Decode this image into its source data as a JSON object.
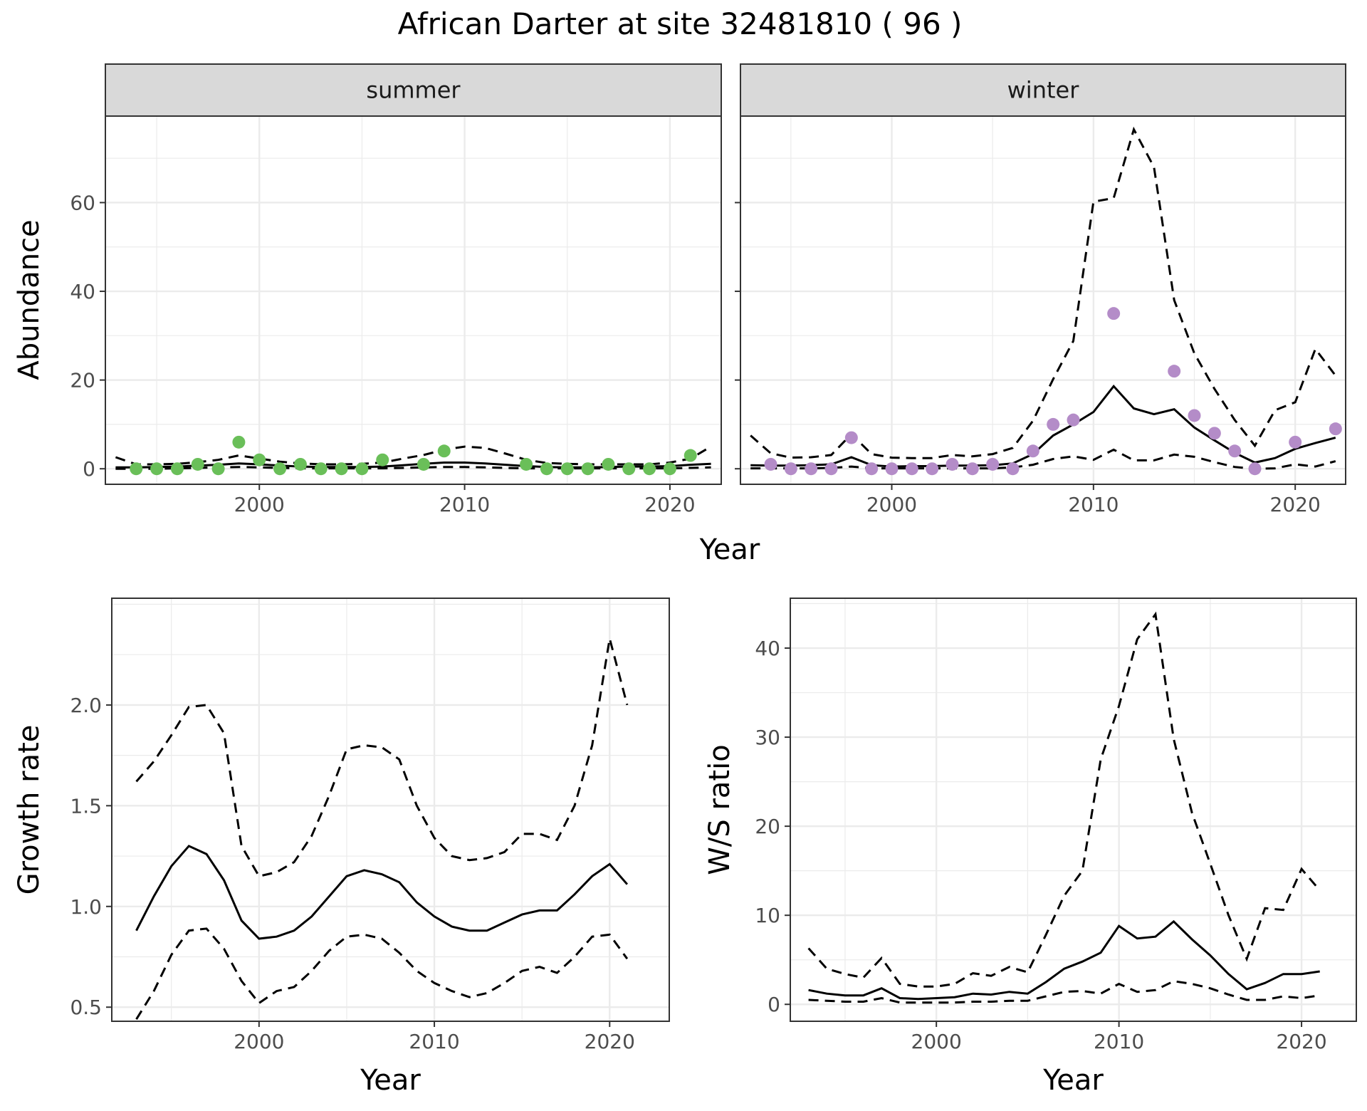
{
  "page_title": "African Darter at site 32481810 ( 96 )",
  "chart_data": [
    {
      "type": "line",
      "facet": "summer",
      "facet_label": "summer",
      "xlabel": "",
      "ylabel": "Abundance",
      "xlim": [
        1992.5,
        2022.5
      ],
      "ylim": [
        -3.5,
        79.5
      ],
      "xticks": [
        2000,
        2010,
        2020
      ],
      "yticks": [
        0,
        20,
        40,
        60
      ],
      "grid": true,
      "point_color": "#6abf59",
      "fit": {
        "x": [
          1993,
          1994,
          1995,
          1996,
          1997,
          1998,
          1999,
          2000,
          2001,
          2002,
          2003,
          2004,
          2005,
          2006,
          2007,
          2008,
          2009,
          2010,
          2011,
          2012,
          2013,
          2014,
          2015,
          2016,
          2017,
          2018,
          2019,
          2020,
          2021,
          2022
        ],
        "y": [
          0.3,
          0.3,
          0.4,
          0.5,
          0.7,
          0.9,
          1.2,
          1.0,
          0.7,
          0.5,
          0.4,
          0.4,
          0.4,
          0.5,
          0.8,
          1.1,
          1.4,
          1.4,
          1.2,
          0.9,
          0.6,
          0.4,
          0.3,
          0.3,
          0.4,
          0.5,
          0.5,
          0.6,
          0.9,
          1.1
        ]
      },
      "upper": {
        "x": [
          1993,
          1994,
          1995,
          1996,
          1997,
          1998,
          1999,
          2000,
          2001,
          2002,
          2003,
          2004,
          2005,
          2006,
          2007,
          2008,
          2009,
          2010,
          2011,
          2012,
          2013,
          2014,
          2015,
          2016,
          2017,
          2018,
          2019,
          2020,
          2021,
          2022
        ],
        "y": [
          2.6,
          1.0,
          1.0,
          1.1,
          1.5,
          2.0,
          3.0,
          2.3,
          1.6,
          1.2,
          1.0,
          1.0,
          1.1,
          1.4,
          2.3,
          3.1,
          4.3,
          5.0,
          4.7,
          3.4,
          2.0,
          1.3,
          1.1,
          1.0,
          1.0,
          1.0,
          1.0,
          1.4,
          2.3,
          5.0
        ]
      },
      "lower": {
        "x": [
          1993,
          1994,
          1995,
          1996,
          1997,
          1998,
          1999,
          2000,
          2001,
          2002,
          2003,
          2004,
          2005,
          2006,
          2007,
          2008,
          2009,
          2010,
          2011,
          2012,
          2013,
          2014,
          2015,
          2016,
          2017,
          2018,
          2019,
          2020,
          2021,
          2022
        ],
        "y": [
          0.0,
          0.0,
          0.0,
          0.1,
          0.2,
          0.3,
          0.4,
          0.3,
          0.2,
          0.1,
          0.1,
          0.1,
          0.1,
          0.1,
          0.2,
          0.3,
          0.4,
          0.4,
          0.3,
          0.2,
          0.1,
          0.1,
          0.1,
          0.1,
          0.1,
          0.1,
          0.1,
          0.1,
          0.2,
          0.3
        ]
      },
      "points": {
        "x": [
          1994,
          1995,
          1996,
          1997,
          1998,
          1999,
          2000,
          2001,
          2002,
          2003,
          2004,
          2005,
          2006,
          2008,
          2009,
          2013,
          2014,
          2015,
          2016,
          2017,
          2018,
          2019,
          2020,
          2021
        ],
        "y": [
          0,
          0,
          0,
          1,
          0,
          6,
          2,
          0,
          1,
          0,
          0,
          0,
          2,
          1,
          4,
          1,
          0,
          0,
          0,
          1,
          0,
          0,
          0,
          3
        ]
      }
    },
    {
      "type": "line",
      "facet": "winter",
      "facet_label": "winter",
      "xlabel": "",
      "ylabel": "",
      "xlim": [
        1992.5,
        2022.5
      ],
      "ylim": [
        -3.5,
        79.5
      ],
      "xticks": [
        2000,
        2010,
        2020
      ],
      "yticks": [
        0,
        20,
        40,
        60
      ],
      "grid": true,
      "point_color": "#b48cc8",
      "fit": {
        "x": [
          1993,
          1994,
          1995,
          1996,
          1997,
          1998,
          1999,
          2000,
          2001,
          2002,
          2003,
          2004,
          2005,
          2006,
          2007,
          2008,
          2009,
          2010,
          2011,
          2012,
          2013,
          2014,
          2015,
          2016,
          2017,
          2018,
          2019,
          2020,
          2021,
          2022
        ],
        "y": [
          0.8,
          0.7,
          0.7,
          0.8,
          1.0,
          2.6,
          0.8,
          0.5,
          0.6,
          0.6,
          0.7,
          0.7,
          0.8,
          1.2,
          3.3,
          7.5,
          10.0,
          12.8,
          18.6,
          13.6,
          12.3,
          13.4,
          9.3,
          6.4,
          3.6,
          1.4,
          2.4,
          4.5,
          5.8,
          7.0
        ]
      },
      "upper": {
        "x": [
          1993,
          1994,
          1995,
          1996,
          1997,
          1998,
          1999,
          2000,
          2001,
          2002,
          2003,
          2004,
          2005,
          2006,
          2007,
          2008,
          2009,
          2010,
          2011,
          2012,
          2013,
          2014,
          2015,
          2016,
          2017,
          2018,
          2019,
          2020,
          2021,
          2022
        ],
        "y": [
          7.5,
          3.5,
          2.5,
          2.6,
          3.1,
          7.8,
          3.3,
          2.5,
          2.4,
          2.4,
          3.1,
          2.8,
          3.3,
          4.7,
          10.8,
          20.2,
          28.8,
          60.2,
          61.0,
          76.5,
          68.0,
          38.0,
          26.0,
          18.0,
          11.0,
          5.2,
          13.2,
          15.0,
          27.0,
          21.0
        ]
      },
      "lower": {
        "x": [
          1993,
          1994,
          1995,
          1996,
          1997,
          1998,
          1999,
          2000,
          2001,
          2002,
          2003,
          2004,
          2005,
          2006,
          2007,
          2008,
          2009,
          2010,
          2011,
          2012,
          2013,
          2014,
          2015,
          2016,
          2017,
          2018,
          2019,
          2020,
          2021,
          2022
        ],
        "y": [
          0.1,
          0.1,
          0.1,
          0.1,
          0.2,
          0.5,
          0.1,
          0.1,
          0.1,
          0.1,
          0.1,
          0.1,
          0.1,
          0.3,
          0.9,
          2.2,
          2.8,
          2.0,
          4.3,
          1.9,
          1.9,
          3.2,
          2.7,
          1.5,
          0.4,
          0.0,
          0.1,
          1.0,
          0.5,
          1.7
        ]
      },
      "points": {
        "x": [
          1994,
          1995,
          1996,
          1997,
          1998,
          1999,
          2000,
          2001,
          2002,
          2003,
          2004,
          2005,
          2006,
          2007,
          2008,
          2009,
          2011,
          2014,
          2015,
          2016,
          2017,
          2018,
          2020,
          2022
        ],
        "y": [
          1,
          0,
          0,
          0,
          7,
          0,
          0,
          0,
          0,
          1,
          0,
          1,
          0,
          4,
          10,
          11,
          35,
          22,
          12,
          8,
          4,
          0,
          6,
          9
        ]
      }
    },
    {
      "type": "line",
      "xlabel": "Year",
      "ylabel": "Growth rate",
      "xlim": [
        1991.6,
        2023.4
      ],
      "ylim": [
        0.43,
        2.53
      ],
      "xticks": [
        2000,
        2010,
        2020
      ],
      "yticks": [
        0.5,
        1.0,
        1.5,
        2.0
      ],
      "ytick_labels": [
        "0.5",
        "1.0",
        "1.5",
        "2.0"
      ],
      "grid": true,
      "fit": {
        "x": [
          1993,
          1994,
          1995,
          1996,
          1997,
          1998,
          1999,
          2000,
          2001,
          2002,
          2003,
          2004,
          2005,
          2006,
          2007,
          2008,
          2009,
          2010,
          2011,
          2012,
          2013,
          2014,
          2015,
          2016,
          2017,
          2018,
          2019,
          2020,
          2021
        ],
        "y": [
          0.88,
          1.05,
          1.2,
          1.3,
          1.26,
          1.13,
          0.93,
          0.84,
          0.85,
          0.88,
          0.95,
          1.05,
          1.15,
          1.18,
          1.16,
          1.12,
          1.02,
          0.95,
          0.9,
          0.88,
          0.88,
          0.92,
          0.96,
          0.98,
          0.98,
          1.06,
          1.15,
          1.21,
          1.11
        ]
      },
      "upper": {
        "x": [
          1993,
          1994,
          1995,
          1996,
          1997,
          1998,
          1999,
          2000,
          2001,
          2002,
          2003,
          2004,
          2005,
          2006,
          2007,
          2008,
          2009,
          2010,
          2011,
          2012,
          2013,
          2014,
          2015,
          2016,
          2017,
          2018,
          2019,
          2020,
          2021
        ],
        "y": [
          1.62,
          1.72,
          1.85,
          1.99,
          2.0,
          1.86,
          1.3,
          1.15,
          1.17,
          1.22,
          1.35,
          1.55,
          1.78,
          1.8,
          1.79,
          1.73,
          1.5,
          1.34,
          1.25,
          1.23,
          1.24,
          1.27,
          1.36,
          1.36,
          1.33,
          1.5,
          1.8,
          2.33,
          2.0
        ]
      },
      "lower": {
        "x": [
          1993,
          1994,
          1995,
          1996,
          1997,
          1998,
          1999,
          2000,
          2001,
          2002,
          2003,
          2004,
          2005,
          2006,
          2007,
          2008,
          2009,
          2010,
          2011,
          2012,
          2013,
          2014,
          2015,
          2016,
          2017,
          2018,
          2019,
          2020,
          2021
        ],
        "y": [
          0.44,
          0.58,
          0.76,
          0.88,
          0.89,
          0.79,
          0.63,
          0.52,
          0.58,
          0.6,
          0.68,
          0.78,
          0.85,
          0.86,
          0.84,
          0.77,
          0.68,
          0.62,
          0.58,
          0.55,
          0.57,
          0.62,
          0.68,
          0.7,
          0.67,
          0.75,
          0.85,
          0.86,
          0.74
        ]
      }
    },
    {
      "type": "line",
      "xlabel": "Year",
      "ylabel": "W/S ratio",
      "xlim": [
        1992.0,
        2023.0
      ],
      "ylim": [
        -1.9,
        45.6
      ],
      "xticks": [
        2000,
        2010,
        2020
      ],
      "yticks": [
        0,
        10,
        20,
        30,
        40
      ],
      "grid": true,
      "fit": {
        "x": [
          1993,
          1994,
          1995,
          1996,
          1997,
          1998,
          1999,
          2000,
          2001,
          2002,
          2003,
          2004,
          2005,
          2006,
          2007,
          2008,
          2009,
          2010,
          2011,
          2012,
          2013,
          2014,
          2015,
          2016,
          2017,
          2018,
          2019,
          2020,
          2021
        ],
        "y": [
          1.6,
          1.2,
          1.0,
          1.0,
          1.8,
          0.7,
          0.6,
          0.7,
          0.8,
          1.2,
          1.1,
          1.4,
          1.2,
          2.5,
          4.0,
          4.8,
          5.8,
          8.8,
          7.4,
          7.6,
          9.3,
          7.3,
          5.5,
          3.4,
          1.7,
          2.4,
          3.4,
          3.4,
          3.7
        ]
      },
      "upper": {
        "x": [
          1993,
          1994,
          1995,
          1996,
          1997,
          1998,
          1999,
          2000,
          2001,
          2002,
          2003,
          2004,
          2005,
          2006,
          2007,
          2008,
          2009,
          2010,
          2011,
          2012,
          2013,
          2014,
          2015,
          2016,
          2017,
          2018,
          2019,
          2020,
          2021
        ],
        "y": [
          6.3,
          4.0,
          3.4,
          3.0,
          5.2,
          2.3,
          2.0,
          2.0,
          2.3,
          3.5,
          3.2,
          4.2,
          3.6,
          7.8,
          12.2,
          15.0,
          27.5,
          33.5,
          41.0,
          43.8,
          29.8,
          21.5,
          15.8,
          10.0,
          5.1,
          10.8,
          10.6,
          15.2,
          12.8
        ]
      },
      "lower": {
        "x": [
          1993,
          1994,
          1995,
          1996,
          1997,
          1998,
          1999,
          2000,
          2001,
          2002,
          2003,
          2004,
          2005,
          2006,
          2007,
          2008,
          2009,
          2010,
          2011,
          2012,
          2013,
          2014,
          2015,
          2016,
          2017,
          2018,
          2019,
          2020,
          2021
        ],
        "y": [
          0.5,
          0.4,
          0.3,
          0.3,
          0.7,
          0.2,
          0.2,
          0.2,
          0.2,
          0.3,
          0.3,
          0.4,
          0.4,
          0.9,
          1.4,
          1.5,
          1.2,
          2.3,
          1.4,
          1.6,
          2.6,
          2.3,
          1.8,
          1.1,
          0.5,
          0.5,
          0.9,
          0.7,
          1.0
        ]
      }
    }
  ]
}
